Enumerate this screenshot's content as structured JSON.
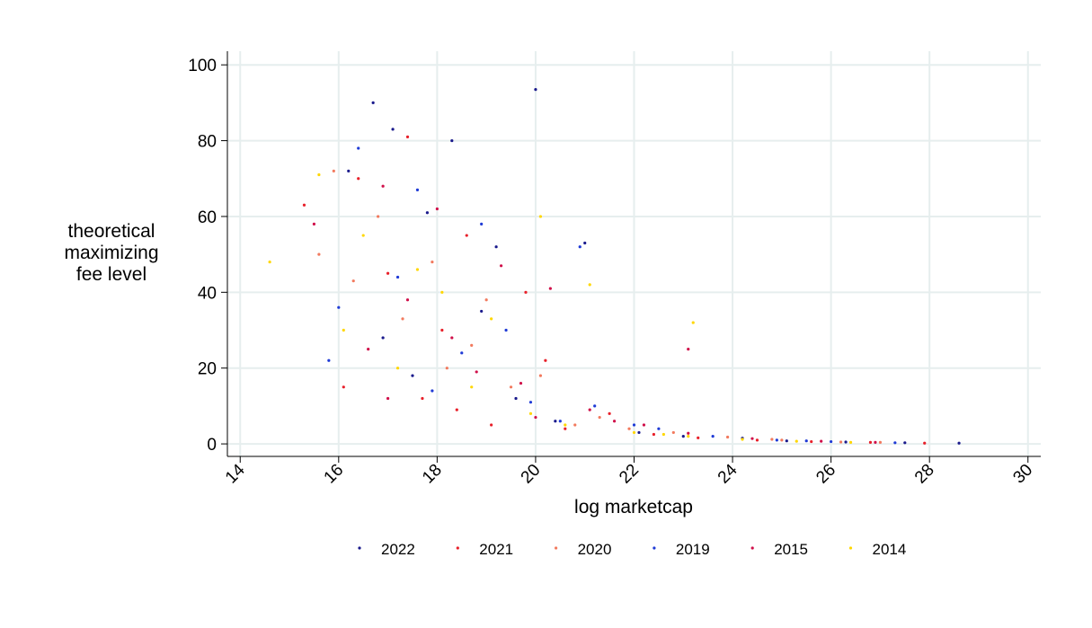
{
  "chart_data": {
    "type": "scatter",
    "xlabel": "log marketcap",
    "ylabel": [
      "theoretical",
      "maximizing",
      "fee level"
    ],
    "xlim": [
      13.74,
      30.26
    ],
    "ylim": [
      -3.3,
      103.6
    ],
    "xticks": [
      14,
      16,
      18,
      20,
      22,
      24,
      26,
      28,
      30
    ],
    "yticks": [
      0,
      20,
      40,
      60,
      80,
      100
    ],
    "grid": true,
    "legend": "bottom",
    "series": [
      {
        "name": "2022",
        "color": "#1a1a8c",
        "x": [
          16.7,
          17.1,
          18.3,
          16.2,
          17.8,
          19.2,
          20.0,
          18.9,
          21.0,
          16.9,
          17.5,
          19.6,
          20.4,
          22.1,
          23.0,
          24.2,
          25.1,
          26.3,
          27.5,
          28.6
        ],
        "values": [
          90,
          83,
          80,
          72,
          61,
          52,
          93.5,
          35,
          53,
          28,
          18,
          12,
          6,
          3,
          2,
          1.5,
          0.8,
          0.5,
          0.3,
          0.2
        ]
      },
      {
        "name": "2021",
        "color": "#e8202a",
        "x": [
          17.4,
          15.3,
          16.4,
          18.6,
          17.0,
          19.8,
          18.1,
          20.2,
          16.1,
          21.5,
          17.7,
          19.1,
          22.4,
          23.3,
          24.5,
          25.6,
          26.8,
          27.9,
          20.6,
          18.4
        ],
        "values": [
          81,
          63,
          70,
          55,
          45,
          40,
          30,
          22,
          15,
          8,
          12,
          5,
          2.5,
          1.6,
          1,
          0.6,
          0.4,
          0.2,
          4,
          9
        ]
      },
      {
        "name": "2020",
        "color": "#f27a5e",
        "x": [
          15.9,
          16.8,
          17.9,
          19.0,
          18.7,
          20.1,
          17.3,
          21.3,
          22.8,
          23.9,
          25.0,
          26.2,
          16.3,
          19.5,
          18.2,
          20.8,
          21.9,
          24.8,
          27.0,
          15.6
        ],
        "values": [
          72,
          60,
          48,
          38,
          26,
          18,
          33,
          7,
          3,
          1.8,
          1,
          0.5,
          43,
          15,
          20,
          5,
          4,
          1.2,
          0.4,
          50
        ]
      },
      {
        "name": "2019",
        "color": "#1f3bd6",
        "x": [
          16.4,
          17.6,
          18.9,
          17.2,
          20.9,
          19.4,
          16.0,
          18.5,
          21.2,
          22.5,
          23.6,
          24.9,
          26.0,
          27.3,
          17.9,
          19.9,
          20.5,
          15.8,
          22.0,
          25.5
        ],
        "values": [
          78,
          67,
          58,
          44,
          52,
          30,
          36,
          24,
          10,
          4,
          2,
          1,
          0.6,
          0.3,
          14,
          11,
          6,
          22,
          5,
          0.8
        ]
      },
      {
        "name": "2015",
        "color": "#d0104a",
        "x": [
          16.9,
          15.5,
          18.0,
          19.3,
          17.4,
          20.3,
          16.6,
          18.8,
          21.1,
          22.2,
          23.1,
          24.4,
          25.8,
          26.9,
          19.7,
          17.0,
          20.0,
          23.1,
          18.3,
          21.6
        ],
        "values": [
          68,
          58,
          62,
          47,
          38,
          41,
          25,
          19,
          9,
          5,
          2.8,
          1.4,
          0.7,
          0.4,
          16,
          12,
          7,
          25,
          28,
          6
        ]
      },
      {
        "name": "2014",
        "color": "#ffd700",
        "x": [
          14.6,
          15.6,
          16.5,
          17.6,
          18.1,
          19.1,
          20.1,
          21.1,
          22.0,
          23.1,
          24.2,
          25.3,
          26.4,
          17.2,
          18.7,
          19.9,
          16.1,
          20.6,
          22.6,
          23.2
        ],
        "values": [
          48,
          71,
          55,
          46,
          40,
          33,
          60,
          42,
          3,
          2,
          1.2,
          0.7,
          0.4,
          20,
          15,
          8,
          30,
          5,
          2.5,
          32
        ]
      }
    ]
  }
}
